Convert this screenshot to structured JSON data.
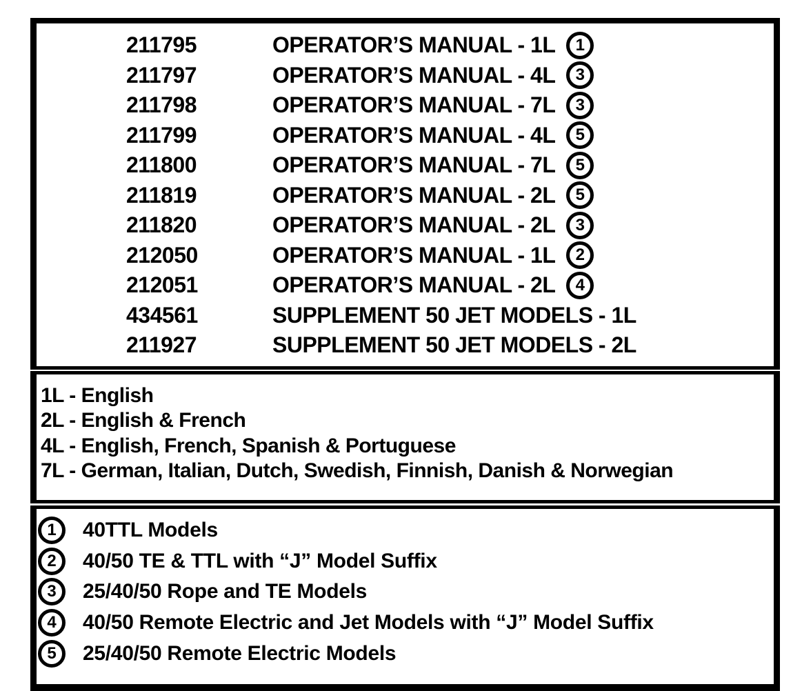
{
  "page": {
    "colors": {
      "ink": "#000000",
      "paper": "#ffffff"
    }
  },
  "parts_list": {
    "rows": [
      {
        "part_number": "211795",
        "description": "OPERATOR’S MANUAL - 1L",
        "note_ref": "1"
      },
      {
        "part_number": "211797",
        "description": "OPERATOR’S MANUAL - 4L",
        "note_ref": "3"
      },
      {
        "part_number": "211798",
        "description": "OPERATOR’S MANUAL - 7L",
        "note_ref": "3"
      },
      {
        "part_number": "211799",
        "description": "OPERATOR’S MANUAL - 4L",
        "note_ref": "5"
      },
      {
        "part_number": "211800",
        "description": "OPERATOR’S MANUAL - 7L",
        "note_ref": "5"
      },
      {
        "part_number": "211819",
        "description": "OPERATOR’S MANUAL - 2L",
        "note_ref": "5"
      },
      {
        "part_number": "211820",
        "description": "OPERATOR’S MANUAL - 2L",
        "note_ref": "3"
      },
      {
        "part_number": "212050",
        "description": "OPERATOR’S MANUAL - 1L",
        "note_ref": "2"
      },
      {
        "part_number": "212051",
        "description": "OPERATOR’S MANUAL - 2L",
        "note_ref": "4"
      },
      {
        "part_number": "434561",
        "description": "SUPPLEMENT 50 JET MODELS - 1L",
        "note_ref": null
      },
      {
        "part_number": "211927",
        "description": "SUPPLEMENT 50 JET MODELS - 2L",
        "note_ref": null
      }
    ]
  },
  "language_legend": {
    "items": [
      {
        "code": "1L",
        "text": "1L - English"
      },
      {
        "code": "2L",
        "text": "2L - English & French"
      },
      {
        "code": "4L",
        "text": "4L - English, French, Spanish & Portuguese"
      },
      {
        "code": "7L",
        "text": "7L - German, Italian, Dutch, Swedish, Finnish, Danish & Norwegian"
      }
    ]
  },
  "model_notes": {
    "items": [
      {
        "num": "1",
        "label": "40TTL Models"
      },
      {
        "num": "2",
        "label": "40/50 TE & TTL with “J” Model Suffix"
      },
      {
        "num": "3",
        "label": "25/40/50 Rope and TE Models"
      },
      {
        "num": "4",
        "label": "40/50 Remote Electric and Jet Models with “J” Model Suffix"
      },
      {
        "num": "5",
        "label": "25/40/50 Remote Electric Models"
      }
    ]
  }
}
